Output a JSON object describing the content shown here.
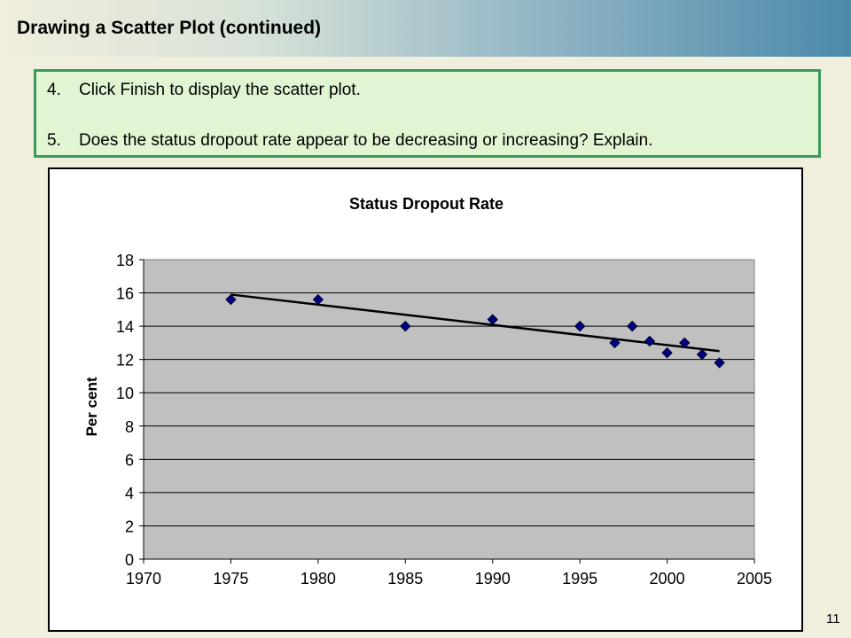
{
  "slide": {
    "title": "Drawing a Scatter Plot (continued)",
    "page_number": "11"
  },
  "instructions": [
    {
      "num": "4.",
      "text": "Click Finish to display the scatter plot."
    },
    {
      "num": "5.",
      "text": "Does the status dropout rate appear to be decreasing or increasing? Explain."
    }
  ],
  "colors": {
    "callout_border": "#3a9a5b",
    "callout_fill": "#e2f5d3",
    "plot_area": "#c0c0c0",
    "marker": "#000080"
  },
  "chart_data": {
    "type": "scatter",
    "title": "Status Dropout Rate",
    "xlabel": "",
    "ylabel": "Per cent",
    "xlim": [
      1970,
      2005
    ],
    "ylim": [
      0,
      18
    ],
    "xticks": [
      "1970",
      "1975",
      "1980",
      "1985",
      "1990",
      "1995",
      "2000",
      "2005"
    ],
    "yticks": [
      "0",
      "2",
      "4",
      "6",
      "8",
      "10",
      "12",
      "14",
      "16",
      "18"
    ],
    "grid": "horizontal",
    "legend": "none",
    "series": [
      {
        "x": [
          1975,
          1980,
          1985,
          1990,
          1995,
          1997,
          1998,
          1999,
          2000,
          2001,
          2002,
          2003
        ],
        "y": [
          15.6,
          15.6,
          14.0,
          14.4,
          14.0,
          13.0,
          14.0,
          13.1,
          12.4,
          13.0,
          12.3,
          11.8
        ]
      }
    ],
    "trendline": {
      "type": "linear",
      "x": [
        1975,
        2003
      ],
      "y": [
        15.9,
        12.5
      ]
    }
  }
}
